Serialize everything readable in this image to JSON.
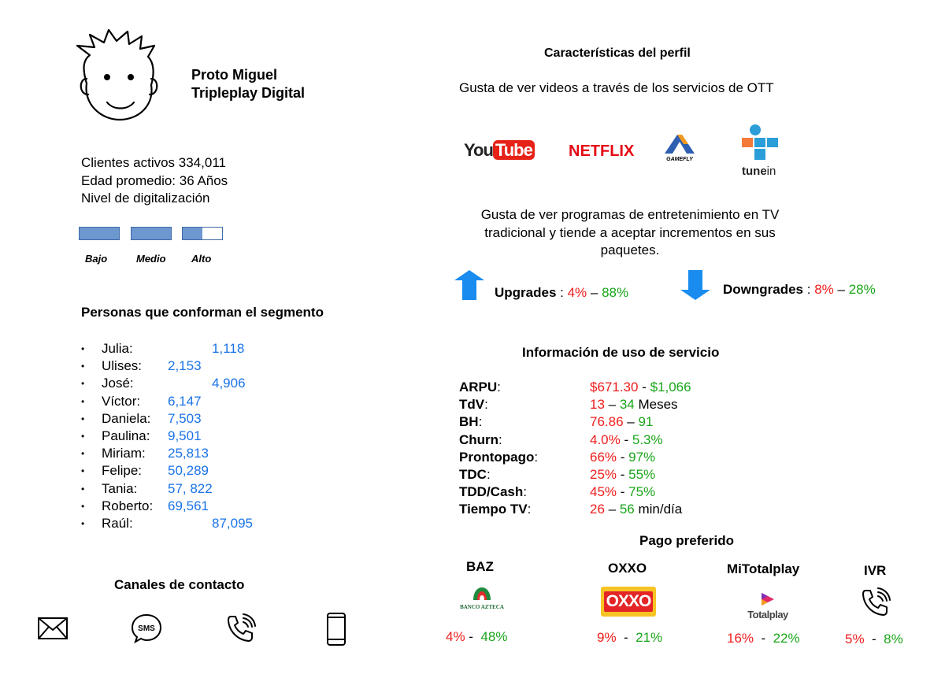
{
  "profile": {
    "name": "Proto Miguel",
    "company": "Tripleplay Digital"
  },
  "stats": {
    "active_clients": "Clientes activos 334,011",
    "avg_age": "Edad promedio: 36 Años",
    "digital_level": "Nivel de digitalización"
  },
  "digital_levels": {
    "labels": [
      "Bajo",
      "Medio",
      "Alto"
    ],
    "fill_fraction": 0.5
  },
  "segment": {
    "title": "Personas que conforman el segmento",
    "people": [
      {
        "name": "Julia:",
        "value": "1,118"
      },
      {
        "name": "Ulises:",
        "value": "2,153"
      },
      {
        "name": "José:",
        "value": "4,906"
      },
      {
        "name": "Víctor:",
        "value": "6,147"
      },
      {
        "name": "Daniela:",
        "value": "7,503"
      },
      {
        "name": "Paulina:",
        "value": "9,501"
      },
      {
        "name": "Miriam:",
        "value": "25,813"
      },
      {
        "name": "Felipe:",
        "value": "50,289"
      },
      {
        "name": "Tania:",
        "value": "57, 822"
      },
      {
        "name": "Roberto:",
        "value": "69,561"
      },
      {
        "name": "Raúl:",
        "value": "87,095"
      }
    ]
  },
  "contact": {
    "title": "Canales de contacto",
    "sms_text": "SMS"
  },
  "characteristics": {
    "title": "Características del perfil",
    "ott_text": "Gusta de ver videos a través de los servicios de OTT",
    "logos": {
      "youtube_a": "You",
      "youtube_b": "Tube",
      "netflix": "NETFLIX",
      "gamefly": "GAMEFLY",
      "tunein_a": "tune",
      "tunein_b": "in"
    },
    "tv_text": "Gusta de ver programas de entretenimiento en TV tradicional y tiende a aceptar incrementos en sus paquetes."
  },
  "upgrades": {
    "label": "Upgrades",
    "sep": " : ",
    "low": "4%",
    "dash": " – ",
    "high": "88%"
  },
  "downgrades": {
    "label": "Downgrades",
    "sep": " : ",
    "low": "8%",
    "dash": " – ",
    "high": "28%"
  },
  "usage": {
    "title": "Información de uso de servicio",
    "rows": [
      {
        "label": "ARPU",
        "colon": ":",
        "low": "$671.30",
        "sep": " - ",
        "high": "$1,066",
        "unit": ""
      },
      {
        "label": "TdV",
        "colon": ":",
        "low": "13",
        "sep": " – ",
        "high": "34",
        "unit": " Meses"
      },
      {
        "label": "BH",
        "colon": ":",
        "low": "76.86",
        "sep": " – ",
        "high": "91",
        "unit": ""
      },
      {
        "label": "Churn",
        "colon": ":",
        "low": "4.0%",
        "sep": " - ",
        "high": "5.3%",
        "unit": ""
      },
      {
        "label": "Prontopago",
        "colon": ":",
        "low": "66%",
        "sep": " - ",
        "high": "97%",
        "unit": ""
      },
      {
        "label": "TDC",
        "colon": ":",
        "low": "25%",
        "sep": " - ",
        "high": "55%",
        "unit": ""
      },
      {
        "label": "TDD/Cash",
        "colon": ":",
        "low": "45%",
        "sep": " - ",
        "high": "75%",
        "unit": ""
      },
      {
        "label": "Tiempo TV",
        "colon": ":",
        "low": "26",
        "sep": " – ",
        "high": "56",
        "unit": " min/día"
      }
    ]
  },
  "payment": {
    "title": "Pago preferido",
    "methods": [
      {
        "name": "BAZ",
        "logo_text": "BANCO AZTECA",
        "low": "4%",
        "sep": " -  ",
        "high": "48%"
      },
      {
        "name": "OXXO",
        "logo_text": "OXXO",
        "low": "9%",
        "sep": "  -  ",
        "high": "21%"
      },
      {
        "name": "MiTotalplay",
        "logo_text": "Totalplay",
        "low": "16%",
        "sep": "  -  ",
        "high": "22%"
      },
      {
        "name": "IVR",
        "logo_text": "",
        "low": "5%",
        "sep": "  -  ",
        "high": "8%"
      }
    ]
  },
  "colors": {
    "low": "#ee1c1c",
    "high": "#1aa51a",
    "count": "#1a73e8",
    "level_fill": "#6d97cf",
    "arrow": "#1a8cf0"
  }
}
